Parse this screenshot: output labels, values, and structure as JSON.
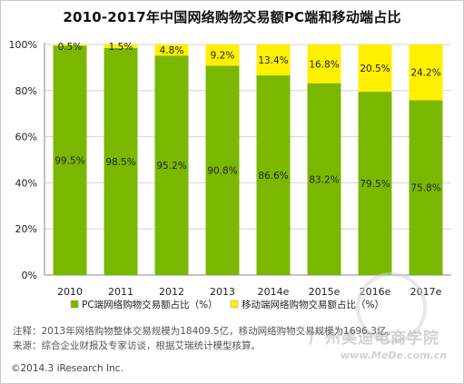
{
  "chart_data": {
    "type": "bar",
    "stacked": true,
    "title": "2010-2017年中国网络购物交易额PC端和移动端占比",
    "categories": [
      "2010",
      "2011",
      "2012",
      "2013",
      "2014e",
      "2015e",
      "2016e",
      "2017e"
    ],
    "series": [
      {
        "name": "PC端网络购物交易额占比（%）",
        "color": "#7ab800",
        "values": [
          99.5,
          98.5,
          95.2,
          90.8,
          86.6,
          83.2,
          79.5,
          75.8
        ],
        "labels": [
          "99.5%",
          "98.5%",
          "95.2%",
          "90.8%",
          "86.6%",
          "83.2%",
          "79.5%",
          "75.8%"
        ]
      },
      {
        "name": "移动端网络购物交易额占比（%）",
        "color": "#fff000",
        "values": [
          0.5,
          1.5,
          4.8,
          9.2,
          13.4,
          16.8,
          20.5,
          24.2
        ],
        "labels": [
          "0.5%",
          "1.5%",
          "4.8%",
          "9.2%",
          "13.4%",
          "16.8%",
          "20.5%",
          "24.2%"
        ]
      }
    ],
    "ylim": [
      0,
      100
    ],
    "yticks": [
      "0%",
      "20%",
      "40%",
      "60%",
      "80%",
      "100%"
    ],
    "grid": true,
    "legend_position": "bottom"
  },
  "notes": {
    "line1": "注释：2013年网络购物整体交易规模为18409.5亿，移动网络购物交易规模为1696.3亿。",
    "line2": "来源：综合企业财报及专家访谈，根据艾瑞统计模型核算。"
  },
  "copyright": "©2014.3 iResearch Inc.",
  "watermark": {
    "name": "广州美迪电商学院",
    "url": "www.MeDe.com.cn"
  }
}
